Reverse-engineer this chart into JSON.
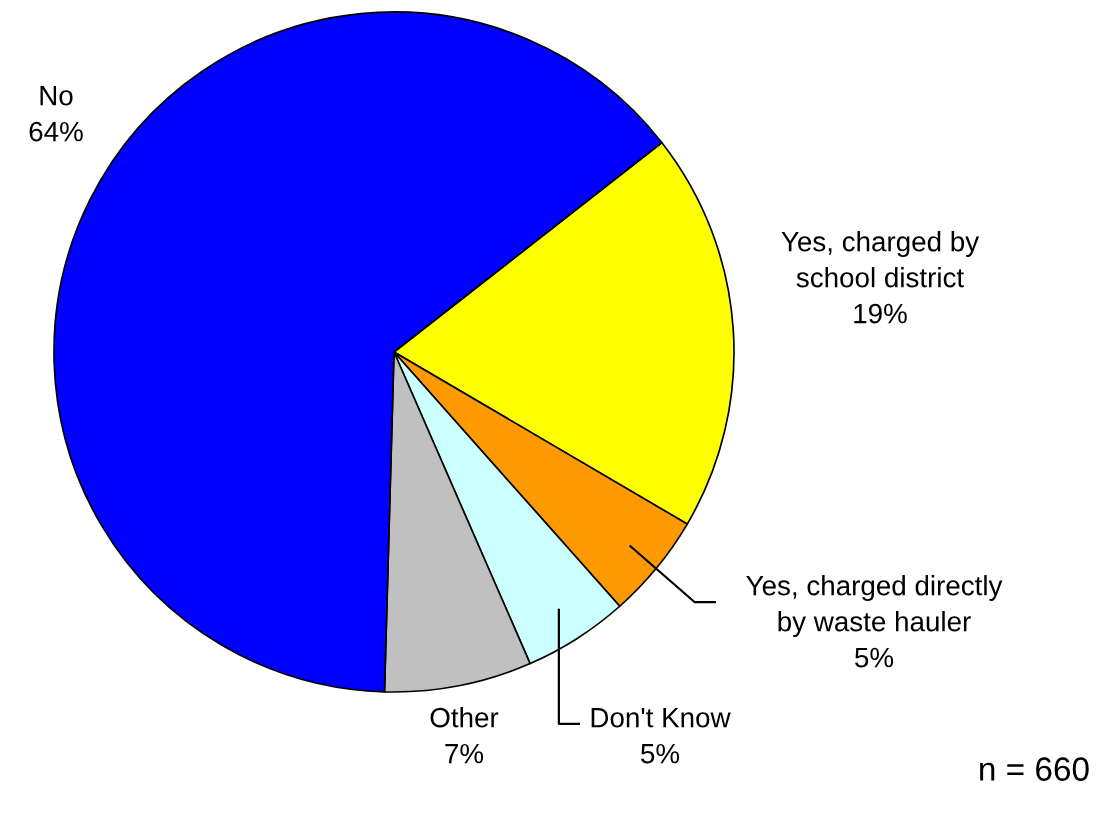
{
  "chart_data": {
    "type": "pie",
    "categories": [
      "Yes, charged by\nschool district",
      "Yes, charged directly\nby waste hauler",
      "Don't Know",
      "Other",
      "No"
    ],
    "values": [
      19,
      5,
      5,
      7,
      64
    ],
    "colors": [
      "#ffff00",
      "#ff9900",
      "#ccffff",
      "#c0c0c0",
      "#0000ff"
    ],
    "value_labels": [
      "19%",
      "5%",
      "5%",
      "7%",
      "64%"
    ],
    "legend": false,
    "annotations": [
      "n = 660"
    ]
  }
}
